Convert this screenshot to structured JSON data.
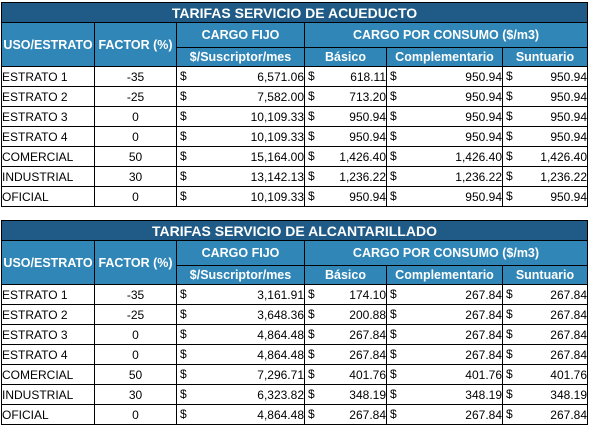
{
  "tables": [
    {
      "title": "TARIFAS SERVICIO DE ACUEDUCTO",
      "col_uso": "USO/ESTRATO",
      "col_factor": "FACTOR (%)",
      "col_cargo_fijo": "CARGO FIJO",
      "col_cargo_fijo_unit": "$/Suscriptor/mes",
      "col_consumo": "CARGO POR CONSUMO ($/m3)",
      "col_basico": "Básico",
      "col_complementario": "Complementario",
      "col_suntuario": "Suntuario",
      "currency": "$",
      "rows": [
        {
          "uso": "ESTRATO 1",
          "factor": "-35",
          "cargo_fijo": "6,571.06",
          "basico": "618.11",
          "complementario": "950.94",
          "suntuario": "950.94"
        },
        {
          "uso": "ESTRATO 2",
          "factor": "-25",
          "cargo_fijo": "7,582.00",
          "basico": "713.20",
          "complementario": "950.94",
          "suntuario": "950.94"
        },
        {
          "uso": "ESTRATO 3",
          "factor": "0",
          "cargo_fijo": "10,109.33",
          "basico": "950.94",
          "complementario": "950.94",
          "suntuario": "950.94"
        },
        {
          "uso": "ESTRATO 4",
          "factor": "0",
          "cargo_fijo": "10,109.33",
          "basico": "950.94",
          "complementario": "950.94",
          "suntuario": "950.94"
        },
        {
          "uso": "COMERCIAL",
          "factor": "50",
          "cargo_fijo": "15,164.00",
          "basico": "1,426.40",
          "complementario": "1,426.40",
          "suntuario": "1,426.40"
        },
        {
          "uso": "INDUSTRIAL",
          "factor": "30",
          "cargo_fijo": "13,142.13",
          "basico": "1,236.22",
          "complementario": "1,236.22",
          "suntuario": "1,236.22"
        },
        {
          "uso": "OFICIAL",
          "factor": "0",
          "cargo_fijo": "10,109.33",
          "basico": "950.94",
          "complementario": "950.94",
          "suntuario": "950.94"
        }
      ]
    },
    {
      "title": "TARIFAS SERVICIO DE ALCANTARILLADO",
      "col_uso": "USO/ESTRATO",
      "col_factor": "FACTOR (%)",
      "col_cargo_fijo": "CARGO FIJO",
      "col_cargo_fijo_unit": "$/Suscriptor/mes",
      "col_consumo": "CARGO POR CONSUMO ($/m3)",
      "col_basico": "Básico",
      "col_complementario": "Complementario",
      "col_suntuario": "Suntuario",
      "currency": "$",
      "rows": [
        {
          "uso": "ESTRATO 1",
          "factor": "-35",
          "cargo_fijo": "3,161.91",
          "basico": "174.10",
          "complementario": "267.84",
          "suntuario": "267.84"
        },
        {
          "uso": "ESTRATO 2",
          "factor": "-25",
          "cargo_fijo": "3,648.36",
          "basico": "200.88",
          "complementario": "267.84",
          "suntuario": "267.84"
        },
        {
          "uso": "ESTRATO 3",
          "factor": "0",
          "cargo_fijo": "4,864.48",
          "basico": "267.84",
          "complementario": "267.84",
          "suntuario": "267.84"
        },
        {
          "uso": "ESTRATO 4",
          "factor": "0",
          "cargo_fijo": "4,864.48",
          "basico": "267.84",
          "complementario": "267.84",
          "suntuario": "267.84"
        },
        {
          "uso": "COMERCIAL",
          "factor": "50",
          "cargo_fijo": "7,296.71",
          "basico": "401.76",
          "complementario": "401.76",
          "suntuario": "401.76"
        },
        {
          "uso": "INDUSTRIAL",
          "factor": "30",
          "cargo_fijo": "6,323.82",
          "basico": "348.19",
          "complementario": "348.19",
          "suntuario": "348.19"
        },
        {
          "uso": "OFICIAL",
          "factor": "0",
          "cargo_fijo": "4,864.48",
          "basico": "267.84",
          "complementario": "267.84",
          "suntuario": "267.84"
        }
      ]
    }
  ]
}
